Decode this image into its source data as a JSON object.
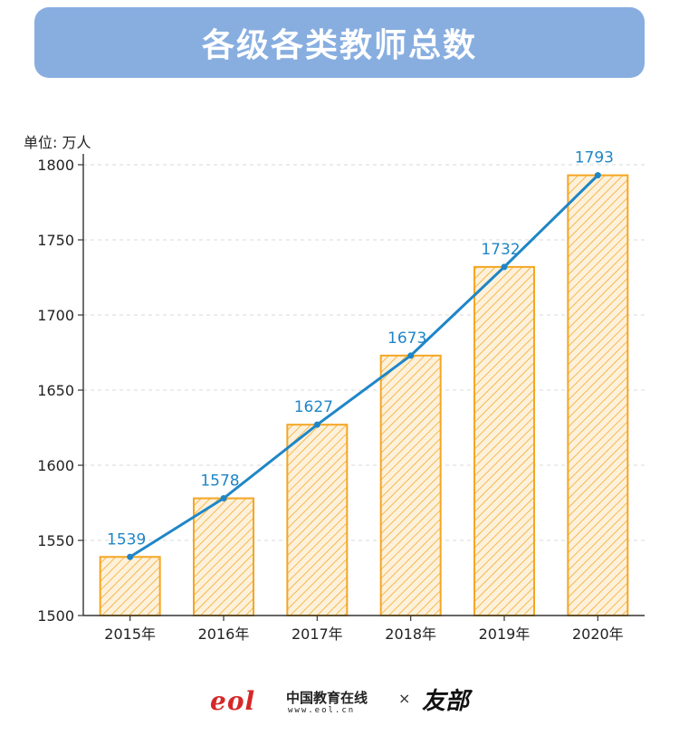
{
  "title": "各级各类教师总数",
  "unit_label": "单位: 万人",
  "footer": {
    "eol_mark": "eol",
    "org_name": "中国教育在线",
    "url": "www.eol.cn",
    "times": "×",
    "partner_mark": "友部"
  },
  "chart_data": {
    "type": "bar",
    "categories": [
      "2015年",
      "2016年",
      "2017年",
      "2018年",
      "2019年",
      "2020年"
    ],
    "values": [
      1539,
      1578,
      1627,
      1673,
      1732,
      1793
    ],
    "line_overlay": true,
    "ylim": [
      1500,
      1800
    ],
    "yticks": [
      1500,
      1550,
      1600,
      1650,
      1700,
      1750,
      1800
    ],
    "ylabel": "单位: 万人",
    "grid": true,
    "colors": {
      "bar_stroke": "#f5a623",
      "bar_hatch": "#f5b94a",
      "bar_fill": "#fdf1dc",
      "line": "#1f86c7",
      "value_label": "#1f86c7",
      "axis": "#333333",
      "grid": "#d9d9d9"
    }
  }
}
